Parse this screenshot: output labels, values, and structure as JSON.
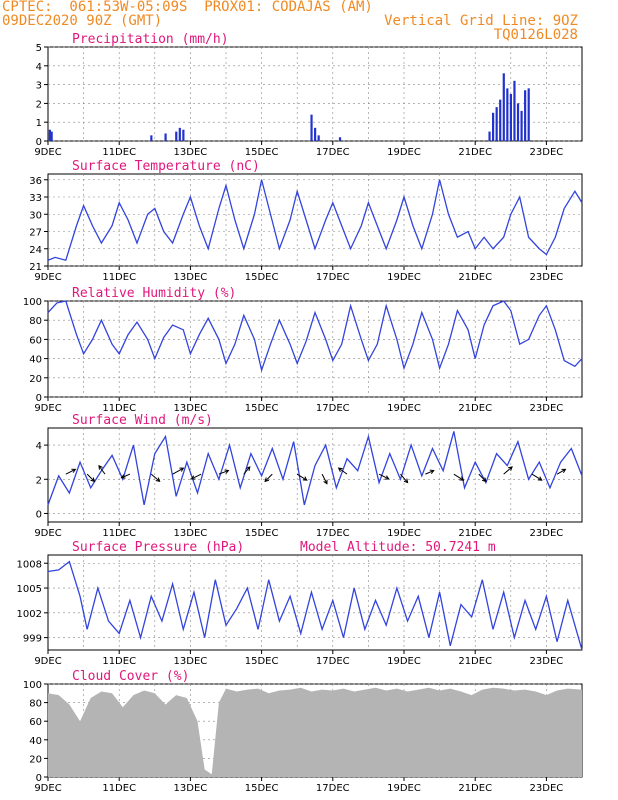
{
  "header": {
    "line1": "CPTEC:  061:53W-05:09S  PROX01: CODAJAS (AM)",
    "line2": "09DEC2020 90Z (GMT)",
    "grid_note": "Vertical Grid Line: 9OZ",
    "code": "TQ0126L028"
  },
  "colors": {
    "line": "#3344dd",
    "bar": "#2233cc",
    "cloud": "#b4b4b4",
    "title": "#e0187c",
    "header": "#f08a24"
  },
  "x_ticks": [
    "9DEC",
    "11DEC",
    "13DEC",
    "15DEC",
    "17DEC",
    "19DEC",
    "21DEC",
    "23DEC"
  ],
  "chart_data": [
    {
      "type": "bar",
      "title": "Precipitation (mm/h)",
      "ylim": [
        0,
        5
      ],
      "yticks": [
        0,
        1,
        2,
        3,
        4,
        5
      ],
      "grid": true,
      "x": [
        0.05,
        0.1,
        2.9,
        3.3,
        3.6,
        3.7,
        3.8,
        7.4,
        7.5,
        7.6,
        8.2,
        12.4,
        12.5,
        12.6,
        12.7,
        12.8,
        12.9,
        13.0,
        13.1,
        13.2,
        13.3,
        13.4,
        13.5
      ],
      "values": [
        0.6,
        0.5,
        0.3,
        0.4,
        0.5,
        0.7,
        0.6,
        1.4,
        0.7,
        0.3,
        0.2,
        0.5,
        1.5,
        1.8,
        2.2,
        3.6,
        2.8,
        2.5,
        3.2,
        2.0,
        1.6,
        2.7,
        2.8
      ]
    },
    {
      "type": "line",
      "title": "Surface Temperature (nC)",
      "ylim": [
        21,
        37
      ],
      "yticks": [
        21,
        24,
        27,
        30,
        33,
        36
      ],
      "grid": true,
      "x": [
        0,
        0.2,
        0.5,
        0.8,
        1.0,
        1.25,
        1.5,
        1.8,
        2.0,
        2.25,
        2.5,
        2.8,
        3.0,
        3.25,
        3.5,
        3.8,
        4.0,
        4.25,
        4.5,
        4.8,
        5.0,
        5.25,
        5.5,
        5.8,
        6.0,
        6.25,
        6.5,
        6.8,
        7.0,
        7.25,
        7.5,
        7.8,
        8.0,
        8.25,
        8.5,
        8.8,
        9.0,
        9.25,
        9.5,
        9.8,
        10.0,
        10.25,
        10.5,
        10.8,
        11.0,
        11.25,
        11.5,
        11.8,
        12.0,
        12.25,
        12.5,
        12.8,
        13.0,
        13.25,
        13.5,
        13.8,
        14.0,
        14.25,
        14.5,
        14.8,
        15.0
      ],
      "values": [
        22,
        22.5,
        22,
        28,
        31.5,
        28,
        25,
        28,
        32,
        29,
        25,
        30,
        31,
        27,
        25,
        30,
        33,
        28,
        24,
        31,
        35,
        29,
        24,
        30,
        36,
        30,
        24,
        29,
        34,
        29,
        24,
        29,
        32,
        28,
        24,
        28,
        32,
        28,
        24,
        29,
        33,
        28,
        24,
        30,
        36,
        30,
        26,
        27,
        24,
        26,
        24,
        26,
        30,
        33,
        26,
        24,
        23,
        26,
        31,
        34,
        32
      ]
    },
    {
      "type": "line",
      "title": "Relative Humidity (%)",
      "ylim": [
        0,
        100
      ],
      "yticks": [
        0,
        20,
        40,
        60,
        80,
        100
      ],
      "grid": true,
      "x": [
        0,
        0.25,
        0.5,
        0.8,
        1.0,
        1.25,
        1.5,
        1.8,
        2.0,
        2.25,
        2.5,
        2.8,
        3.0,
        3.25,
        3.5,
        3.8,
        4.0,
        4.25,
        4.5,
        4.8,
        5.0,
        5.25,
        5.5,
        5.8,
        6.0,
        6.25,
        6.5,
        6.8,
        7.0,
        7.25,
        7.5,
        7.8,
        8.0,
        8.25,
        8.5,
        8.8,
        9.0,
        9.25,
        9.5,
        9.8,
        10.0,
        10.25,
        10.5,
        10.8,
        11.0,
        11.25,
        11.5,
        11.8,
        12.0,
        12.25,
        12.5,
        12.8,
        13.0,
        13.25,
        13.5,
        13.8,
        14.0,
        14.25,
        14.5,
        14.8,
        15.0
      ],
      "values": [
        88,
        98,
        100,
        65,
        45,
        60,
        80,
        55,
        45,
        65,
        78,
        60,
        40,
        62,
        75,
        70,
        45,
        65,
        82,
        60,
        35,
        55,
        85,
        60,
        28,
        55,
        80,
        55,
        35,
        58,
        88,
        60,
        38,
        55,
        95,
        60,
        38,
        55,
        95,
        60,
        30,
        55,
        88,
        60,
        30,
        55,
        90,
        70,
        40,
        75,
        95,
        100,
        90,
        55,
        60,
        85,
        95,
        70,
        38,
        32,
        40
      ]
    },
    {
      "type": "line",
      "title": "Surface Wind (m/s)",
      "ylim": [
        -0.5,
        5
      ],
      "yticks": [
        0,
        2,
        4
      ],
      "grid": true,
      "x": [
        0,
        0.3,
        0.6,
        0.9,
        1.2,
        1.5,
        1.8,
        2.1,
        2.4,
        2.7,
        3.0,
        3.3,
        3.6,
        3.9,
        4.2,
        4.5,
        4.8,
        5.1,
        5.4,
        5.7,
        6.0,
        6.3,
        6.6,
        6.9,
        7.2,
        7.5,
        7.8,
        8.1,
        8.4,
        8.7,
        9.0,
        9.3,
        9.6,
        9.9,
        10.2,
        10.5,
        10.8,
        11.1,
        11.4,
        11.7,
        12.0,
        12.3,
        12.6,
        12.9,
        13.2,
        13.5,
        13.8,
        14.1,
        14.4,
        14.7,
        15.0
      ],
      "values": [
        0.5,
        2.2,
        1.2,
        3.0,
        1.5,
        2.5,
        3.4,
        2.0,
        4.0,
        0.5,
        3.5,
        4.5,
        1.0,
        3.0,
        1.2,
        3.5,
        2.0,
        4.0,
        1.5,
        3.5,
        2.2,
        3.8,
        2.0,
        4.2,
        0.5,
        2.8,
        4.0,
        1.5,
        3.2,
        2.5,
        4.5,
        1.8,
        3.5,
        2.0,
        4.0,
        2.2,
        3.8,
        2.5,
        4.8,
        1.5,
        3.0,
        1.8,
        3.5,
        2.8,
        4.2,
        2.0,
        3.0,
        1.5,
        3.0,
        3.8,
        2.2
      ],
      "arrows": [
        {
          "x": 0.5,
          "u": 0.8,
          "v": 0.4
        },
        {
          "x": 1.1,
          "u": 0.6,
          "v": -0.6
        },
        {
          "x": 1.6,
          "u": -0.5,
          "v": 0.7
        },
        {
          "x": 2.3,
          "u": -0.7,
          "v": -0.3
        },
        {
          "x": 2.9,
          "u": 0.7,
          "v": -0.6
        },
        {
          "x": 3.5,
          "u": 0.9,
          "v": 0.5
        },
        {
          "x": 4.3,
          "u": -0.8,
          "v": -0.4
        },
        {
          "x": 4.8,
          "u": 0.8,
          "v": 0.3
        },
        {
          "x": 5.5,
          "u": 0.5,
          "v": 0.6
        },
        {
          "x": 6.3,
          "u": -0.6,
          "v": -0.6
        },
        {
          "x": 7.0,
          "u": 0.8,
          "v": -0.5
        },
        {
          "x": 7.7,
          "u": 0.4,
          "v": -0.8
        },
        {
          "x": 8.4,
          "u": -0.7,
          "v": 0.5
        },
        {
          "x": 9.3,
          "u": 0.8,
          "v": -0.4
        },
        {
          "x": 9.9,
          "u": 0.6,
          "v": -0.7
        },
        {
          "x": 10.6,
          "u": 0.7,
          "v": 0.3
        },
        {
          "x": 11.4,
          "u": 0.8,
          "v": -0.5
        },
        {
          "x": 12.1,
          "u": 0.6,
          "v": -0.6
        },
        {
          "x": 12.8,
          "u": 0.7,
          "v": 0.6
        },
        {
          "x": 13.6,
          "u": 0.8,
          "v": -0.5
        },
        {
          "x": 14.3,
          "u": 0.7,
          "v": 0.4
        }
      ]
    },
    {
      "type": "line",
      "title": "Surface Pressure (hPa)",
      "annotation": "Model Altitude: 50.7241 m",
      "ylim": [
        997.5,
        1009
      ],
      "yticks": [
        999,
        1002,
        1005,
        1008
      ],
      "grid": true,
      "x": [
        0,
        0.3,
        0.6,
        0.9,
        1.1,
        1.4,
        1.7,
        2.0,
        2.3,
        2.6,
        2.9,
        3.2,
        3.5,
        3.8,
        4.1,
        4.4,
        4.7,
        5.0,
        5.3,
        5.6,
        5.9,
        6.2,
        6.5,
        6.8,
        7.1,
        7.4,
        7.7,
        8.0,
        8.3,
        8.6,
        8.9,
        9.2,
        9.5,
        9.8,
        10.1,
        10.4,
        10.7,
        11.0,
        11.3,
        11.6,
        11.9,
        12.2,
        12.5,
        12.8,
        13.1,
        13.4,
        13.7,
        14.0,
        14.3,
        14.6,
        15.0
      ],
      "values": [
        1007,
        1007.2,
        1008.2,
        1004,
        1000,
        1005,
        1001,
        999.5,
        1003.5,
        999,
        1004,
        1001,
        1005.5,
        1000,
        1004.5,
        999,
        1006,
        1000.5,
        1002.5,
        1005,
        1000,
        1006,
        1001,
        1004,
        999.5,
        1004.5,
        1000,
        1003.5,
        999,
        1005,
        1000,
        1003.5,
        1000.5,
        1005,
        1001,
        1004,
        999,
        1004.5,
        998,
        1003,
        1001.5,
        1006,
        1000,
        1004.5,
        999,
        1003.5,
        1000,
        1004,
        998.5,
        1003.5,
        997.5
      ]
    },
    {
      "type": "area",
      "title": "Cloud Cover (%)",
      "ylim": [
        0,
        100
      ],
      "yticks": [
        0,
        20,
        40,
        60,
        80,
        100
      ],
      "grid": true,
      "x": [
        0,
        0.3,
        0.6,
        0.9,
        1.2,
        1.5,
        1.8,
        2.1,
        2.4,
        2.7,
        3.0,
        3.3,
        3.6,
        3.9,
        4.2,
        4.4,
        4.6,
        4.8,
        5.0,
        5.3,
        5.6,
        5.9,
        6.2,
        6.5,
        6.8,
        7.1,
        7.4,
        7.7,
        8.0,
        8.3,
        8.6,
        8.9,
        9.2,
        9.5,
        9.8,
        10.1,
        10.4,
        10.7,
        11.0,
        11.3,
        11.6,
        11.9,
        12.2,
        12.5,
        12.8,
        13.1,
        13.4,
        13.7,
        14.0,
        14.3,
        14.6,
        15.0
      ],
      "values": [
        90,
        88,
        78,
        60,
        85,
        92,
        90,
        75,
        88,
        93,
        90,
        78,
        88,
        85,
        60,
        8,
        3,
        80,
        95,
        92,
        94,
        95,
        90,
        93,
        94,
        96,
        92,
        94,
        93,
        95,
        92,
        94,
        96,
        93,
        95,
        92,
        94,
        96,
        93,
        95,
        92,
        88,
        94,
        96,
        95,
        93,
        94,
        92,
        88,
        93,
        95,
        94
      ]
    }
  ]
}
